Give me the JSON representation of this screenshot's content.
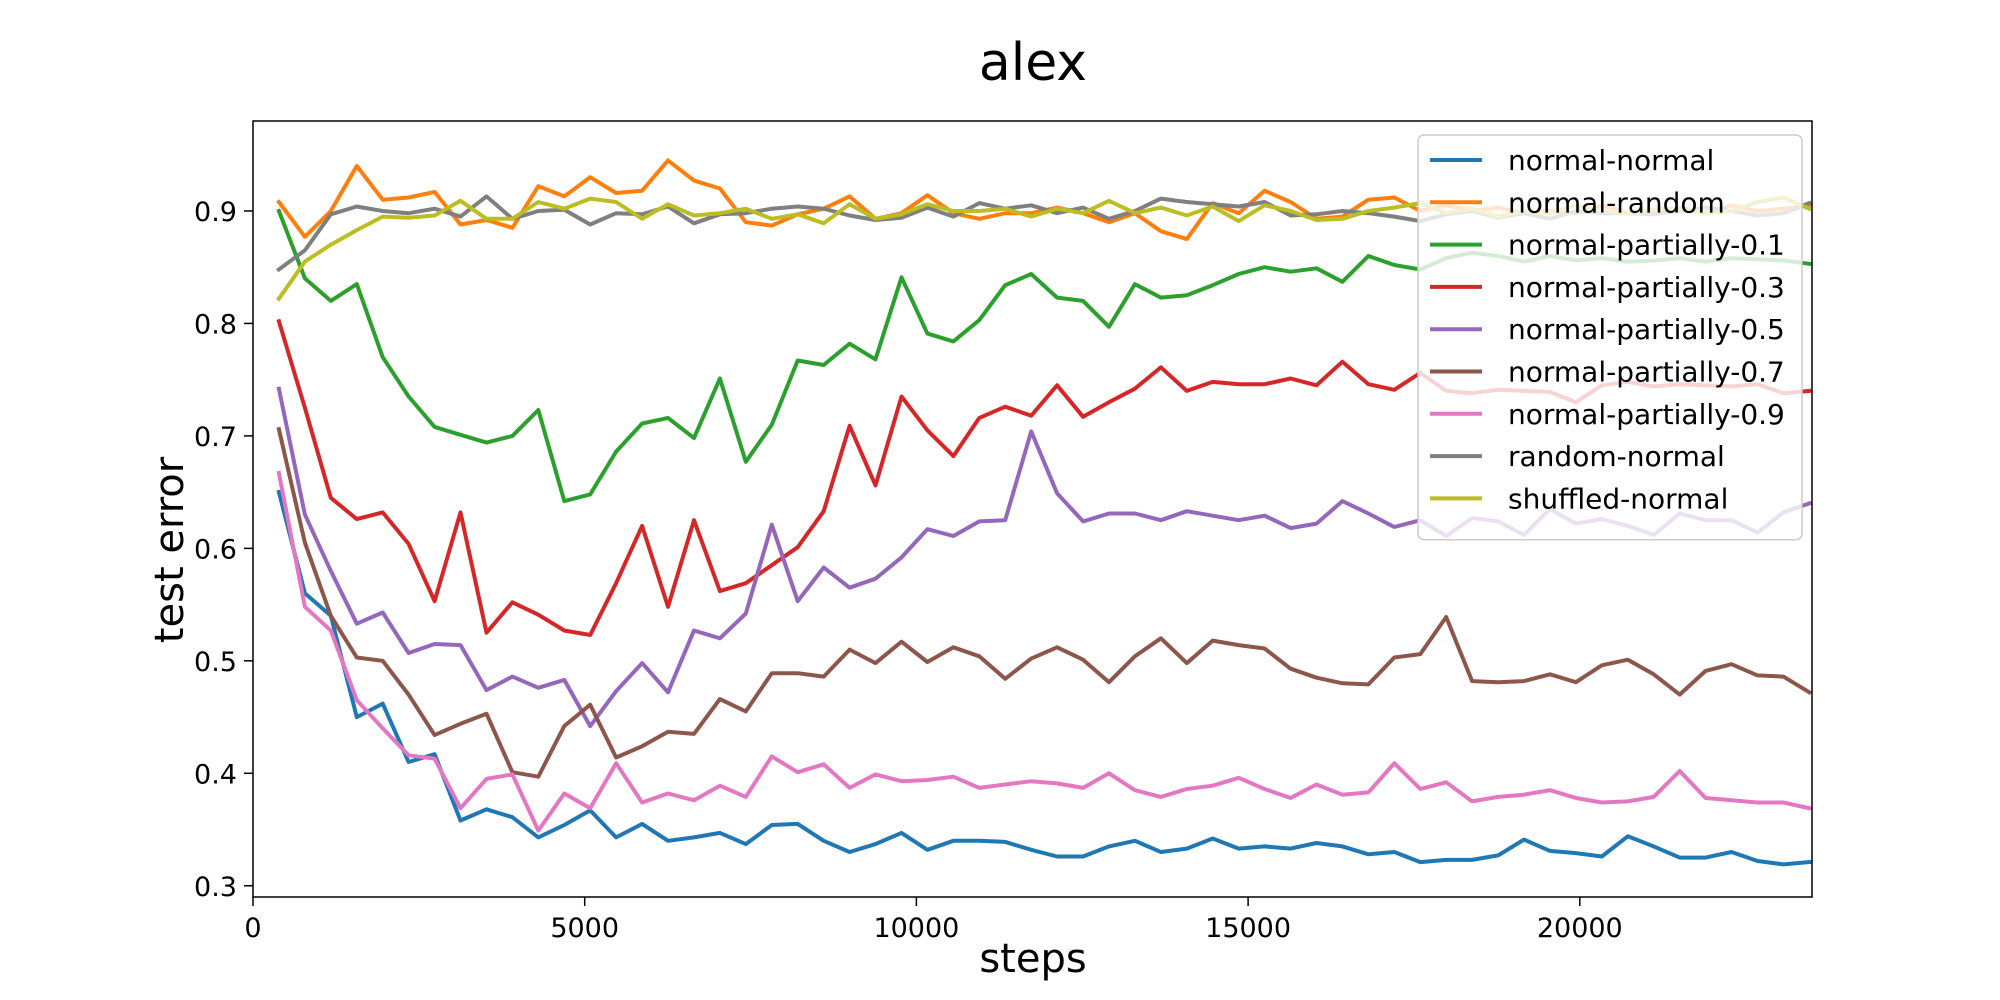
{
  "chart_data": {
    "type": "line",
    "title": "alex",
    "xlabel": "steps",
    "ylabel": "test error",
    "xlim": [
      0,
      23500
    ],
    "ylim": [
      0.29,
      0.98
    ],
    "xticks": [
      0,
      5000,
      10000,
      15000,
      20000
    ],
    "yticks": [
      0.3,
      0.4,
      0.5,
      0.6,
      0.7,
      0.8,
      0.9
    ],
    "xtick_labels": [
      "0",
      "5000",
      "10000",
      "15000",
      "20000"
    ],
    "ytick_labels": [
      "0.3",
      "0.4",
      "0.5",
      "0.6",
      "0.7",
      "0.8",
      "0.9"
    ],
    "grid": false,
    "legend_position": "top-right",
    "x": [
      391,
      782,
      1173,
      1564,
      1955,
      2346,
      2737,
      3128,
      3519,
      3910,
      4301,
      4692,
      5083,
      5474,
      5865,
      6256,
      6647,
      7038,
      7429,
      7820,
      8211,
      8602,
      8993,
      9384,
      9775,
      10166,
      10557,
      10948,
      11339,
      11730,
      12121,
      12512,
      12903,
      13294,
      13685,
      14076,
      14467,
      14858,
      15249,
      15640,
      16031,
      16422,
      16813,
      17204,
      17595,
      17986,
      18377,
      18768,
      19159,
      19550,
      19941,
      20332,
      20723,
      21114,
      21505,
      21896,
      22287,
      22678,
      23069,
      23460
    ],
    "series": [
      {
        "name": "normal-normal",
        "color": "#1f77b4",
        "values": [
          0.65,
          0.56,
          0.54,
          0.45,
          0.462,
          0.41,
          0.417,
          0.358,
          0.368,
          0.361,
          0.343,
          0.354,
          0.367,
          0.343,
          0.355,
          0.34,
          0.343,
          0.347,
          0.337,
          0.354,
          0.355,
          0.34,
          0.33,
          0.337,
          0.347,
          0.332,
          0.34,
          0.34,
          0.339,
          0.332,
          0.326,
          0.326,
          0.335,
          0.34,
          0.33,
          0.333,
          0.342,
          0.333,
          0.335,
          0.333,
          0.338,
          0.335,
          0.328,
          0.33,
          0.321,
          0.323,
          0.323,
          0.327,
          0.341,
          0.331,
          0.329,
          0.326,
          0.344,
          0.335,
          0.325,
          0.325,
          0.33,
          0.322,
          0.319,
          0.321
        ]
      },
      {
        "name": "normal-random",
        "color": "#ff7f0e",
        "values": [
          0.908,
          0.877,
          0.9,
          0.94,
          0.91,
          0.912,
          0.917,
          0.888,
          0.892,
          0.885,
          0.922,
          0.913,
          0.93,
          0.916,
          0.918,
          0.945,
          0.927,
          0.92,
          0.89,
          0.887,
          0.897,
          0.902,
          0.913,
          0.893,
          0.898,
          0.914,
          0.898,
          0.893,
          0.898,
          0.898,
          0.903,
          0.898,
          0.89,
          0.898,
          0.882,
          0.875,
          0.907,
          0.898,
          0.918,
          0.908,
          0.893,
          0.895,
          0.91,
          0.912,
          0.9,
          0.905,
          0.9,
          0.903,
          0.898,
          0.9,
          0.898,
          0.905,
          0.898,
          0.9,
          0.902,
          0.898,
          0.905,
          0.9,
          0.902,
          0.905
        ]
      },
      {
        "name": "normal-partially-0.1",
        "color": "#2ca02c",
        "values": [
          0.9,
          0.84,
          0.82,
          0.835,
          0.77,
          0.735,
          0.708,
          0.701,
          0.694,
          0.7,
          0.723,
          0.642,
          0.648,
          0.686,
          0.711,
          0.716,
          0.698,
          0.751,
          0.677,
          0.71,
          0.767,
          0.763,
          0.782,
          0.768,
          0.841,
          0.791,
          0.784,
          0.803,
          0.834,
          0.844,
          0.823,
          0.82,
          0.797,
          0.835,
          0.823,
          0.825,
          0.834,
          0.844,
          0.85,
          0.846,
          0.849,
          0.837,
          0.86,
          0.852,
          0.848,
          0.858,
          0.863,
          0.86,
          0.855,
          0.86,
          0.856,
          0.858,
          0.855,
          0.856,
          0.858,
          0.855,
          0.858,
          0.857,
          0.856,
          0.853
        ]
      },
      {
        "name": "normal-partially-0.3",
        "color": "#d62728",
        "values": [
          0.802,
          0.725,
          0.645,
          0.626,
          0.632,
          0.604,
          0.553,
          0.632,
          0.525,
          0.552,
          0.541,
          0.527,
          0.523,
          0.569,
          0.62,
          0.548,
          0.625,
          0.562,
          0.569,
          0.585,
          0.601,
          0.633,
          0.709,
          0.656,
          0.735,
          0.705,
          0.682,
          0.716,
          0.726,
          0.718,
          0.745,
          0.717,
          0.73,
          0.742,
          0.761,
          0.74,
          0.748,
          0.746,
          0.746,
          0.751,
          0.745,
          0.766,
          0.746,
          0.741,
          0.756,
          0.74,
          0.738,
          0.741,
          0.74,
          0.739,
          0.73,
          0.745,
          0.748,
          0.744,
          0.746,
          0.745,
          0.744,
          0.746,
          0.738,
          0.74
        ]
      },
      {
        "name": "normal-partially-0.5",
        "color": "#9467bd",
        "values": [
          0.742,
          0.63,
          0.58,
          0.533,
          0.543,
          0.507,
          0.515,
          0.514,
          0.474,
          0.486,
          0.476,
          0.483,
          0.442,
          0.473,
          0.498,
          0.472,
          0.527,
          0.52,
          0.542,
          0.621,
          0.553,
          0.583,
          0.565,
          0.573,
          0.592,
          0.617,
          0.611,
          0.624,
          0.625,
          0.704,
          0.649,
          0.624,
          0.631,
          0.631,
          0.625,
          0.633,
          0.629,
          0.625,
          0.629,
          0.618,
          0.622,
          0.642,
          0.631,
          0.619,
          0.625,
          0.611,
          0.627,
          0.624,
          0.612,
          0.635,
          0.622,
          0.626,
          0.62,
          0.612,
          0.631,
          0.625,
          0.625,
          0.614,
          0.632,
          0.64
        ]
      },
      {
        "name": "normal-partially-0.7",
        "color": "#8c564b",
        "values": [
          0.706,
          0.605,
          0.54,
          0.503,
          0.5,
          0.47,
          0.434,
          0.444,
          0.453,
          0.401,
          0.397,
          0.442,
          0.461,
          0.414,
          0.424,
          0.437,
          0.435,
          0.466,
          0.455,
          0.489,
          0.489,
          0.486,
          0.51,
          0.498,
          0.517,
          0.499,
          0.512,
          0.504,
          0.484,
          0.502,
          0.512,
          0.501,
          0.481,
          0.504,
          0.52,
          0.498,
          0.518,
          0.514,
          0.511,
          0.493,
          0.485,
          0.48,
          0.479,
          0.503,
          0.506,
          0.539,
          0.482,
          0.481,
          0.482,
          0.488,
          0.481,
          0.496,
          0.501,
          0.488,
          0.47,
          0.491,
          0.497,
          0.487,
          0.486,
          0.472
        ]
      },
      {
        "name": "normal-partially-0.9",
        "color": "#e377c2",
        "values": [
          0.667,
          0.548,
          0.527,
          0.465,
          0.44,
          0.416,
          0.413,
          0.369,
          0.395,
          0.399,
          0.349,
          0.382,
          0.369,
          0.409,
          0.374,
          0.382,
          0.376,
          0.389,
          0.379,
          0.415,
          0.401,
          0.408,
          0.387,
          0.399,
          0.393,
          0.394,
          0.397,
          0.387,
          0.39,
          0.393,
          0.391,
          0.387,
          0.4,
          0.385,
          0.379,
          0.386,
          0.389,
          0.396,
          0.386,
          0.378,
          0.39,
          0.381,
          0.383,
          0.409,
          0.386,
          0.392,
          0.375,
          0.379,
          0.381,
          0.385,
          0.378,
          0.374,
          0.375,
          0.379,
          0.402,
          0.378,
          0.376,
          0.374,
          0.374,
          0.369
        ]
      },
      {
        "name": "random-normal",
        "color": "#7f7f7f",
        "values": [
          0.848,
          0.865,
          0.897,
          0.904,
          0.9,
          0.898,
          0.902,
          0.895,
          0.913,
          0.893,
          0.9,
          0.901,
          0.888,
          0.898,
          0.897,
          0.904,
          0.889,
          0.897,
          0.898,
          0.902,
          0.904,
          0.902,
          0.896,
          0.892,
          0.894,
          0.903,
          0.895,
          0.907,
          0.902,
          0.905,
          0.898,
          0.903,
          0.893,
          0.9,
          0.911,
          0.908,
          0.906,
          0.904,
          0.908,
          0.896,
          0.897,
          0.9,
          0.898,
          0.895,
          0.891,
          0.897,
          0.9,
          0.894,
          0.898,
          0.893,
          0.9,
          0.898,
          0.898,
          0.897,
          0.9,
          0.903,
          0.9,
          0.896,
          0.898,
          0.907
        ]
      },
      {
        "name": "shuffled-normal",
        "color": "#bcbd22",
        "values": [
          0.822,
          0.855,
          0.87,
          0.883,
          0.895,
          0.894,
          0.896,
          0.909,
          0.893,
          0.893,
          0.908,
          0.902,
          0.911,
          0.908,
          0.893,
          0.906,
          0.896,
          0.898,
          0.902,
          0.893,
          0.897,
          0.889,
          0.906,
          0.893,
          0.897,
          0.906,
          0.9,
          0.9,
          0.902,
          0.895,
          0.902,
          0.898,
          0.909,
          0.898,
          0.903,
          0.896,
          0.904,
          0.891,
          0.905,
          0.9,
          0.892,
          0.893,
          0.9,
          0.903,
          0.907,
          0.898,
          0.902,
          0.895,
          0.9,
          0.898,
          0.905,
          0.9,
          0.898,
          0.901,
          0.903,
          0.898,
          0.9,
          0.908,
          0.912,
          0.902
        ]
      }
    ]
  }
}
